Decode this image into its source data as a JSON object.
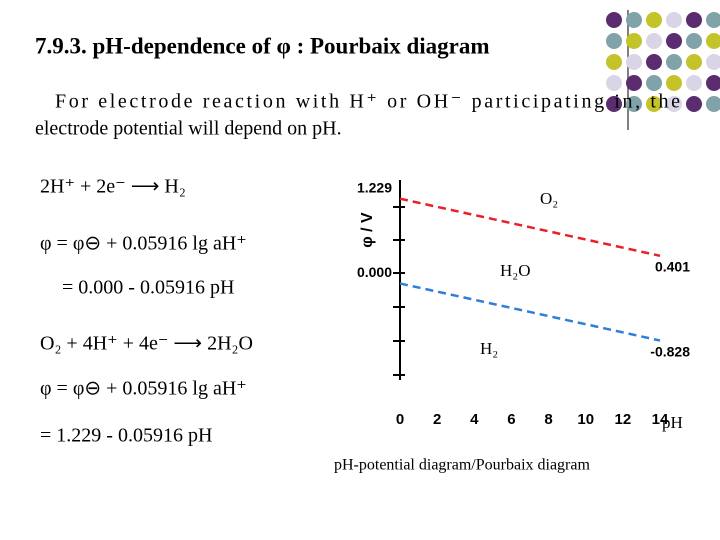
{
  "slide": {
    "title": "7.9.3. pH-dependence of φ : Pourbaix diagram",
    "intro": [
      "For electrode reaction with H⁺ or OH⁻ participating in, the",
      "electrode potential will depend on pH."
    ],
    "formulas": [
      "2H⁺ + 2e⁻ ⟶ H₂",
      "φ = φ⊖ + 0.05916 lg aH⁺",
      "= 0.000 - 0.05916 pH",
      "O₂ + 4H⁺ + 4e⁻ ⟶ 2H₂O",
      "φ = φ⊖ + 0.05916 lg aH⁺",
      "= 1.229 - 0.05916 pH"
    ],
    "caption": "pH-potential diagram/Pourbaix diagram"
  },
  "chart_data": {
    "type": "line",
    "ylabel": "φ / V",
    "xlabel": "pH",
    "x": [
      0,
      14
    ],
    "series": [
      {
        "color": "#e8202a",
        "values": [
          1.229,
          0.401
        ],
        "value_labels": [
          "1.229",
          "0.401"
        ]
      },
      {
        "color": "#2e7fd8",
        "values": [
          0,
          -0.828
        ],
        "value_labels": [
          "0.000",
          "-0.828"
        ]
      }
    ],
    "annotations": [
      "O₂",
      "H₂O",
      "H₂"
    ],
    "xlim": [
      0,
      14
    ],
    "ylim": [
      -1.4,
      1.5
    ],
    "xticks": [
      0,
      2,
      4,
      6,
      8,
      10,
      12,
      14
    ]
  }
}
